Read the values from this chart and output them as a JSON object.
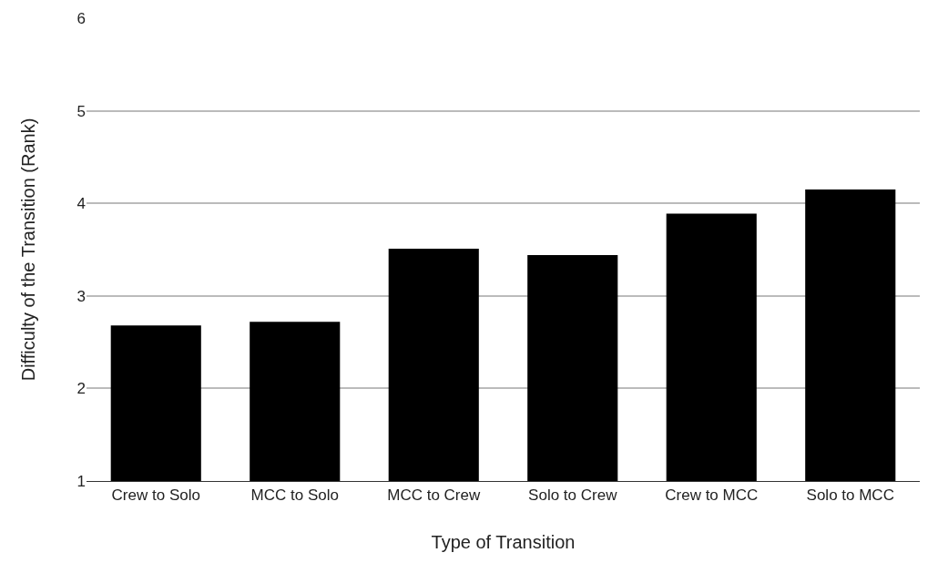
{
  "chart_data": {
    "type": "bar",
    "xlabel": "Type of Transition",
    "ylabel": "Difficulty of the Transition (Rank)",
    "categories": [
      "Crew to Solo",
      "MCC to Solo",
      "MCC to Crew",
      "Solo to Crew",
      "Crew to MCC",
      "Solo to MCC"
    ],
    "values": [
      2.68,
      2.72,
      3.51,
      3.44,
      3.89,
      4.15
    ],
    "color": "#000000",
    "ylim": [
      1,
      6
    ],
    "yticks": [
      1,
      2,
      3,
      4,
      5,
      6
    ],
    "grid": "y"
  }
}
